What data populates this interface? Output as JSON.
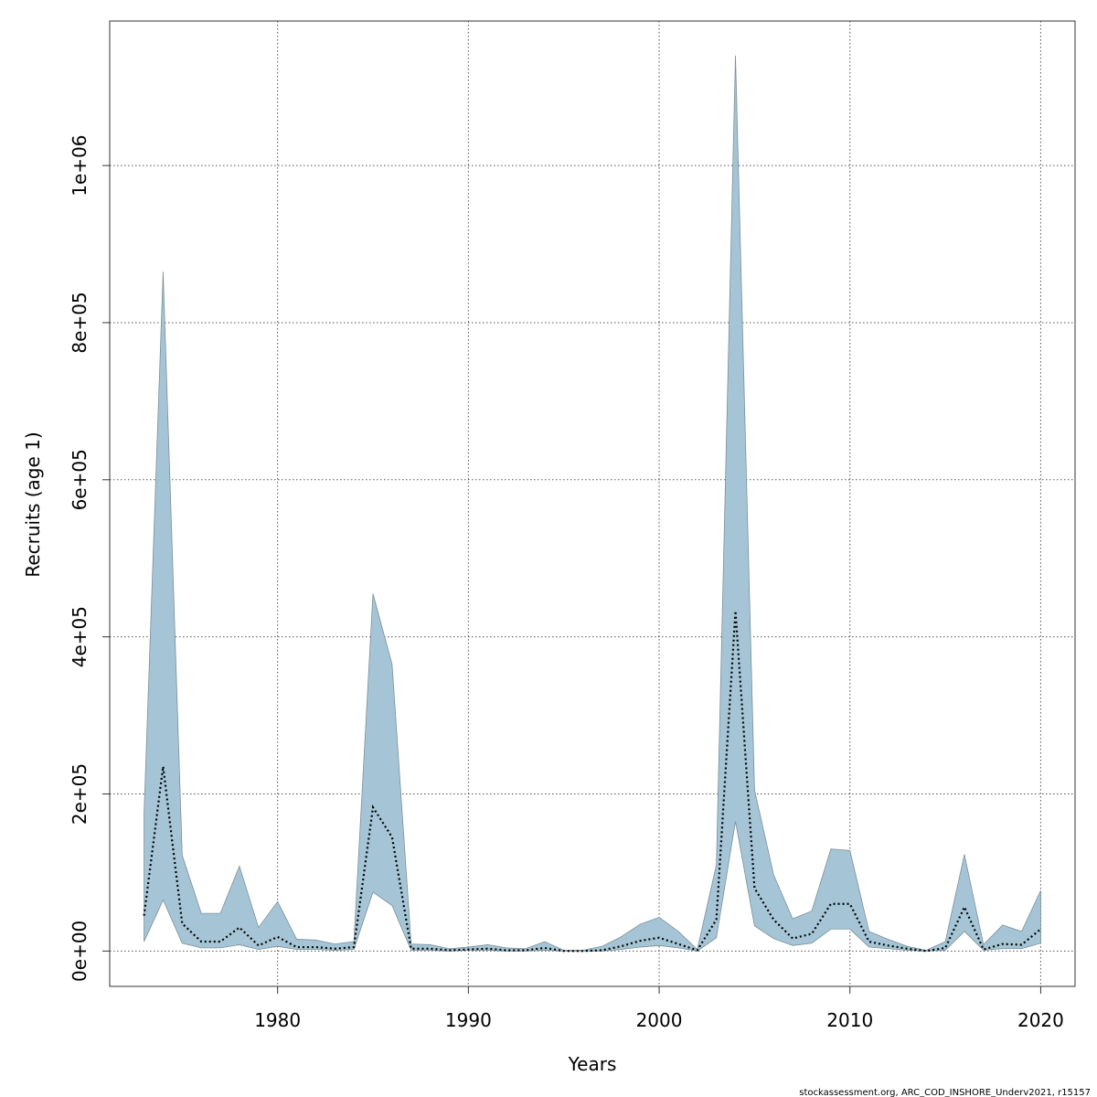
{
  "chart_data": {
    "type": "area",
    "xlabel": "Years",
    "ylabel": "Recruits (age 1)",
    "footnote": "stockassessment.org, ARC_COD_INSHORE_Underv2021, r15157",
    "xlim": [
      1971.2,
      2021.8
    ],
    "ylim": [
      -45000,
      1184000
    ],
    "x_ticks": [
      1980,
      1990,
      2000,
      2010,
      2020
    ],
    "x_tick_labels": [
      "1980",
      "1990",
      "2000",
      "2010",
      "2020"
    ],
    "y_ticks": [
      0,
      200000,
      400000,
      600000,
      800000,
      1000000
    ],
    "y_tick_labels": [
      "0e+00",
      "2e+05",
      "4e+05",
      "6e+05",
      "8e+05",
      "1e+06"
    ],
    "grid": true,
    "colors": {
      "band_fill": "#a5c5d6",
      "band_edge": "#7a8f99",
      "line": "#000000",
      "grid": "#555555"
    },
    "series": [
      {
        "name": "",
        "role": "estimate",
        "style": "dotted-line",
        "x": [
          1973,
          1974,
          1975,
          1976,
          1977,
          1978,
          1979,
          1980,
          1981,
          1982,
          1983,
          1984,
          1985,
          1986,
          1987,
          1988,
          1989,
          1990,
          1991,
          1992,
          1993,
          1994,
          1995,
          1996,
          1997,
          1998,
          1999,
          2000,
          2001,
          2002,
          2003,
          2004,
          2005,
          2006,
          2007,
          2008,
          2009,
          2010,
          2011,
          2012,
          2013,
          2014,
          2015,
          2016,
          2017,
          2018,
          2019,
          2020
        ],
        "values": [
          45000,
          235000,
          35000,
          12000,
          12000,
          30000,
          7000,
          18000,
          5000,
          5000,
          3000,
          5000,
          183000,
          145000,
          3000,
          3000,
          1000,
          2000,
          3000,
          1000,
          1000,
          4000,
          0,
          0,
          1000,
          6000,
          13000,
          17000,
          9000,
          1000,
          40000,
          433000,
          80000,
          40000,
          16000,
          22000,
          60000,
          60000,
          12000,
          7000,
          3000,
          0,
          4000,
          56000,
          2000,
          9000,
          8000,
          28000
        ]
      },
      {
        "name": "",
        "role": "lower",
        "style": "band",
        "x": [
          1973,
          1974,
          1975,
          1976,
          1977,
          1978,
          1979,
          1980,
          1981,
          1982,
          1983,
          1984,
          1985,
          1986,
          1987,
          1988,
          1989,
          1990,
          1991,
          1992,
          1993,
          1994,
          1995,
          1996,
          1997,
          1998,
          1999,
          2000,
          2001,
          2002,
          2003,
          2004,
          2005,
          2006,
          2007,
          2008,
          2009,
          2010,
          2011,
          2012,
          2013,
          2014,
          2015,
          2016,
          2017,
          2018,
          2019,
          2020
        ],
        "values": [
          12000,
          65000,
          10000,
          4000,
          4000,
          8000,
          2000,
          6000,
          2000,
          2000,
          1000,
          2000,
          75000,
          58000,
          1000,
          1000,
          0,
          1000,
          1000,
          0,
          0,
          1000,
          0,
          0,
          0,
          2000,
          5000,
          7000,
          4000,
          0,
          17000,
          165000,
          32000,
          16000,
          7000,
          10000,
          28000,
          28000,
          5000,
          3000,
          1000,
          0,
          1000,
          25000,
          1000,
          3000,
          3000,
          10000
        ]
      },
      {
        "name": "",
        "role": "upper",
        "style": "band",
        "x": [
          1973,
          1974,
          1975,
          1976,
          1977,
          1978,
          1979,
          1980,
          1981,
          1982,
          1983,
          1984,
          1985,
          1986,
          1987,
          1988,
          1989,
          1990,
          1991,
          1992,
          1993,
          1994,
          1995,
          1996,
          1997,
          1998,
          1999,
          2000,
          2001,
          2002,
          2003,
          2004,
          2005,
          2006,
          2007,
          2008,
          2009,
          2010,
          2011,
          2012,
          2013,
          2014,
          2015,
          2016,
          2017,
          2018,
          2019,
          2020
        ],
        "values": [
          175000,
          865000,
          122000,
          48000,
          48000,
          108000,
          30000,
          63000,
          15000,
          14000,
          9000,
          12000,
          455000,
          365000,
          9000,
          8000,
          3000,
          5000,
          8000,
          4000,
          3000,
          12000,
          1000,
          1000,
          6000,
          18000,
          34000,
          43000,
          25000,
          2000,
          110000,
          1140000,
          205000,
          97000,
          41000,
          51000,
          130000,
          128000,
          25000,
          15000,
          6000,
          1000,
          12000,
          123000,
          8000,
          33000,
          25000,
          77000
        ]
      }
    ]
  }
}
